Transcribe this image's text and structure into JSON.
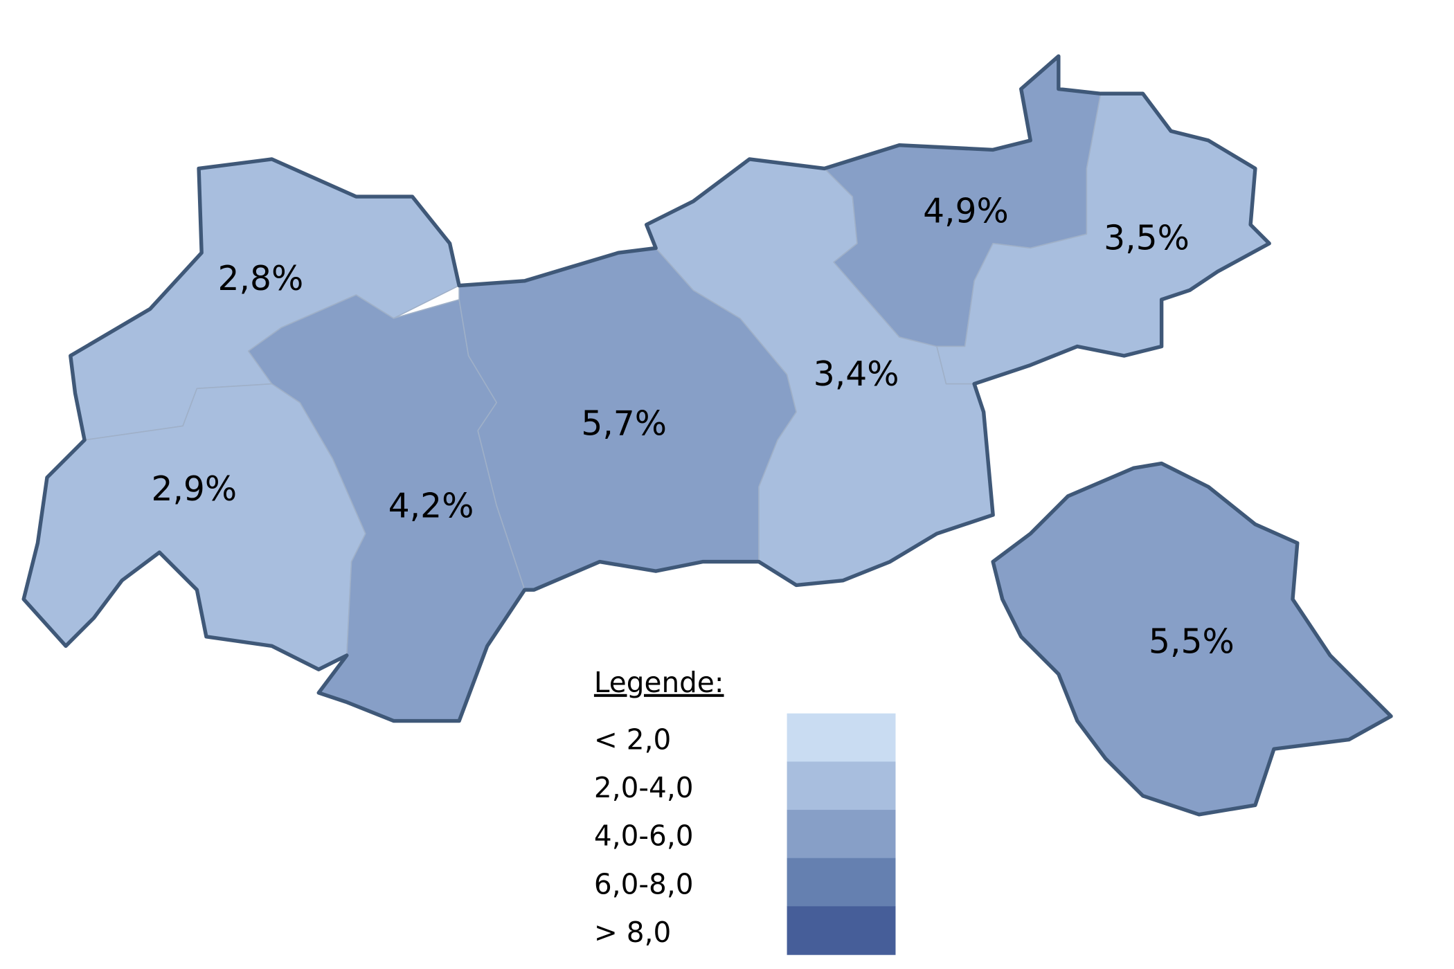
{
  "map": {
    "regions": [
      {
        "value": 2.8,
        "value_label": "2,8%",
        "color": "#a8bede"
      },
      {
        "value": 2.9,
        "value_label": "2,9%",
        "color": "#a8bede"
      },
      {
        "value": 4.2,
        "value_label": "4,2%",
        "color": "#879fc7"
      },
      {
        "value": 5.7,
        "value_label": "5,7%",
        "color": "#879fc7"
      },
      {
        "value": 3.4,
        "value_label": "3,4%",
        "color": "#a8bede"
      },
      {
        "value": 4.9,
        "value_label": "4,9%",
        "color": "#879fc7"
      },
      {
        "value": 3.5,
        "value_label": "3,5%",
        "color": "#a8bede"
      },
      {
        "value": 5.5,
        "value_label": "5,5%",
        "color": "#879fc7"
      }
    ],
    "legend": {
      "title": "Legende:",
      "classes": [
        {
          "label": "< 2,0",
          "color": "#c9dcf2"
        },
        {
          "label": "2,0-4,0",
          "color": "#a8bede"
        },
        {
          "label": "4,0-6,0",
          "color": "#879fc7"
        },
        {
          "label": "6,0-8,0",
          "color": "#6580b0"
        },
        {
          "label": "> 8,0",
          "color": "#465e99"
        }
      ]
    }
  }
}
